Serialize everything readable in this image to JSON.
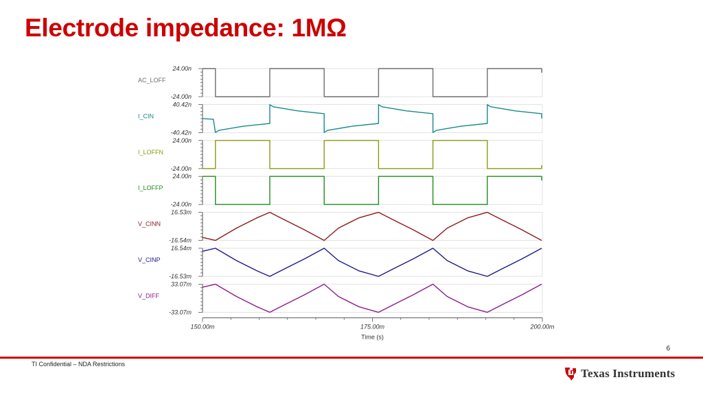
{
  "slide": {
    "title": "Electrode impedance: 1MΩ",
    "page_number": "6",
    "footer": "TI Confidential – NDA Restrictions",
    "logo_text": "Texas Instruments"
  },
  "colors": {
    "title": "#cc0000",
    "AC_LOFF": "#6e6e6e",
    "I_CIN": "#168a8a",
    "I_LOFFN": "#8a9a10",
    "I_LOFFP": "#1e8c1e",
    "V_CINN": "#8b1a1a",
    "V_CINP": "#1a1a8c",
    "V_DIFF": "#8c1a8c"
  },
  "chart_data": {
    "type": "line",
    "xlabel": "Time (s)",
    "xlim": [
      150,
      200
    ],
    "x_unit": "ms",
    "x_ticks": [
      150,
      175,
      200
    ],
    "x_tick_labels": [
      "150.00m",
      "175.00m",
      "200.00m"
    ],
    "grid": true,
    "series": [
      {
        "name": "AC_LOFF",
        "ylim": [
          -24.0,
          24.0
        ],
        "y_unit": "n",
        "y_tick_labels": [
          "24.00n",
          "-24.00n"
        ],
        "x": [
          150,
          151.9,
          151.9,
          159.9,
          159.9,
          167.9,
          167.9,
          175.9,
          175.9,
          183.9,
          183.9,
          191.9,
          191.9,
          199.9,
          199.9
        ],
        "y": [
          24,
          24,
          -24,
          -24,
          24,
          24,
          -24,
          -24,
          24,
          24,
          -24,
          -24,
          24,
          24,
          17
        ]
      },
      {
        "name": "I_CIN",
        "ylim": [
          -40.42,
          40.42
        ],
        "y_unit": "n",
        "y_tick_labels": [
          "40.42n",
          "-40.42n"
        ],
        "x": [
          150,
          151.6,
          151.9,
          152.4,
          156,
          159.9,
          159.9,
          160.4,
          164,
          167.9,
          167.9,
          168.4,
          172,
          175.9,
          175.9,
          176.4,
          180,
          183.9,
          183.9,
          184.4,
          188,
          191.9,
          191.9,
          192.4,
          196,
          199.9,
          199.9
        ],
        "y": [
          0,
          -2,
          -40,
          -34,
          -22,
          -14,
          40,
          34,
          22,
          14,
          -40,
          -34,
          -22,
          -14,
          40,
          34,
          22,
          14,
          -40,
          -34,
          -22,
          -14,
          40,
          34,
          22,
          14,
          0
        ]
      },
      {
        "name": "I_LOFFN",
        "ylim": [
          -24.0,
          24.0
        ],
        "y_unit": "n",
        "y_tick_labels": [
          "24.00n",
          "-24.00n"
        ],
        "x": [
          150,
          151.9,
          151.9,
          159.9,
          159.9,
          167.9,
          167.9,
          175.9,
          175.9,
          183.9,
          183.9,
          191.9,
          191.9,
          199.9,
          199.9
        ],
        "y": [
          -24,
          -24,
          24,
          24,
          -24,
          -24,
          24,
          24,
          -24,
          -24,
          24,
          24,
          -24,
          -24,
          -18
        ]
      },
      {
        "name": "I_LOFFP",
        "ylim": [
          -24.0,
          24.0
        ],
        "y_unit": "n",
        "y_tick_labels": [
          "24.00n",
          "-24.00n"
        ],
        "x": [
          150,
          151.9,
          151.9,
          159.9,
          159.9,
          167.9,
          167.9,
          175.9,
          175.9,
          183.9,
          183.9,
          191.9,
          191.9,
          199.9,
          199.9
        ],
        "y": [
          24,
          24,
          -24,
          -24,
          24,
          24,
          -24,
          -24,
          24,
          24,
          -24,
          -24,
          24,
          24,
          17
        ]
      },
      {
        "name": "V_CINN",
        "ylim": [
          -16.54,
          16.53
        ],
        "y_unit": "m",
        "y_tick_labels": [
          "16.53m",
          "-16.54m"
        ],
        "x": [
          150,
          151.9,
          155,
          158,
          159.9,
          162,
          165,
          167.9,
          170,
          173,
          175.9,
          178,
          181,
          183.9,
          186,
          189,
          191.9,
          194,
          197,
          199.9
        ],
        "y": [
          -13,
          -16.5,
          -2,
          10,
          16.5,
          8,
          -4,
          -16.5,
          -2,
          10,
          16.5,
          8,
          -4,
          -16.5,
          -2,
          10,
          16.5,
          8,
          -4,
          -16.5
        ]
      },
      {
        "name": "V_CINP",
        "ylim": [
          -16.53,
          16.54
        ],
        "y_unit": "m",
        "y_tick_labels": [
          "16.54m",
          "-16.53m"
        ],
        "x": [
          150,
          151.9,
          155,
          158,
          159.9,
          162,
          165,
          167.9,
          170,
          173,
          175.9,
          178,
          181,
          183.9,
          186,
          189,
          191.9,
          194,
          197,
          199.9
        ],
        "y": [
          13,
          16.5,
          2,
          -10,
          -16.5,
          -8,
          4,
          16.5,
          2,
          -10,
          -16.5,
          -8,
          4,
          16.5,
          2,
          -10,
          -16.5,
          -8,
          4,
          16.5
        ]
      },
      {
        "name": "V_DIFF",
        "ylim": [
          -33.07,
          33.07
        ],
        "y_unit": "m",
        "y_tick_labels": [
          "33.07m",
          "-33.07m"
        ],
        "x": [
          150,
          151.9,
          155,
          158,
          159.9,
          162,
          165,
          167.9,
          170,
          173,
          175.9,
          178,
          181,
          183.9,
          186,
          189,
          191.9,
          194,
          197,
          199.9
        ],
        "y": [
          26,
          33,
          4,
          -20,
          -33,
          -16,
          8,
          33,
          4,
          -20,
          -33,
          -16,
          8,
          33,
          4,
          -20,
          -33,
          -16,
          8,
          33
        ]
      }
    ]
  }
}
